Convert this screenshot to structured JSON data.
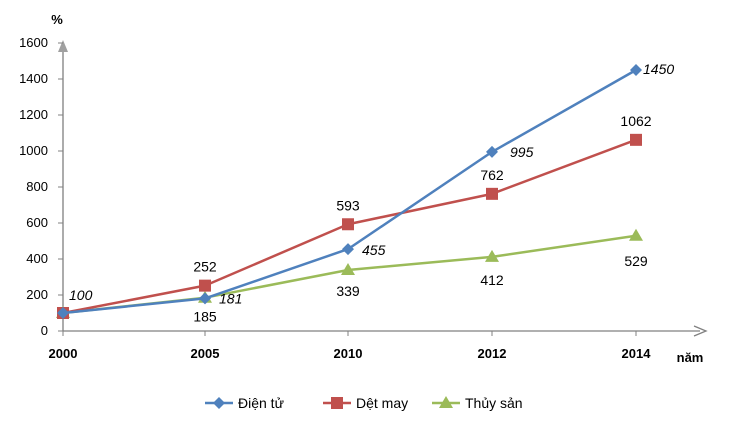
{
  "chart_data": {
    "type": "line",
    "title": "",
    "ylabel": "%",
    "xlabel": "năm",
    "categories": [
      "2000",
      "2005",
      "2010",
      "2012",
      "2014"
    ],
    "ylim": [
      0,
      1600
    ],
    "yticks": [
      0,
      200,
      400,
      600,
      800,
      1000,
      1200,
      1400,
      1600
    ],
    "grid": false,
    "legend_position": "bottom",
    "series": [
      {
        "name": "Điện tử",
        "values": [
          100,
          181,
          455,
          995,
          1450
        ],
        "labels": [
          "100",
          "181",
          "455",
          "995",
          "1450"
        ],
        "color": "#4F81BD",
        "marker": "diamond"
      },
      {
        "name": "Dệt may",
        "values": [
          100,
          252,
          593,
          762,
          1062
        ],
        "labels": [
          "",
          "252",
          "593",
          "762",
          "1062"
        ],
        "color": "#C0504D",
        "marker": "square"
      },
      {
        "name": "Thủy sản",
        "values": [
          100,
          185,
          339,
          412,
          529
        ],
        "labels": [
          "",
          "185",
          "339",
          "412",
          "529"
        ],
        "color": "#9BBB59",
        "marker": "triangle"
      }
    ]
  }
}
